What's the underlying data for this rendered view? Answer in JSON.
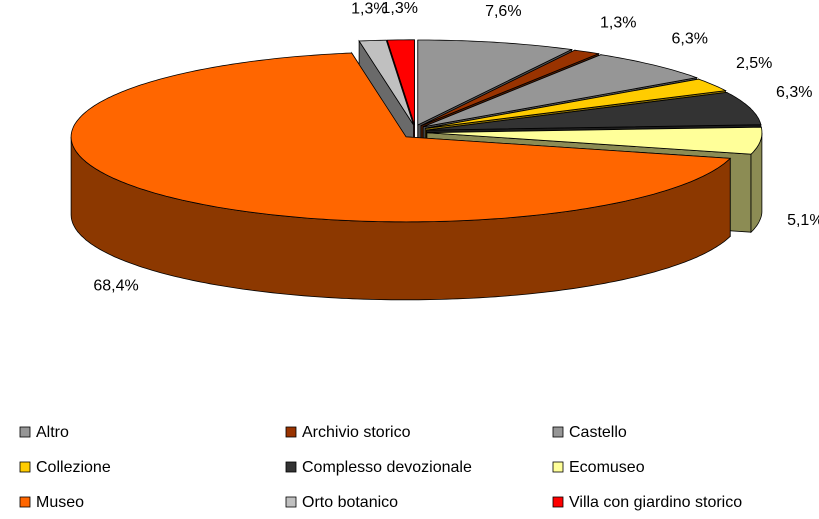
{
  "chart_data": {
    "type": "pie",
    "categories": [
      "Altro",
      "Archivio storico",
      "Castello",
      "Collezione",
      "Complesso devozionale",
      "Ecomuseo",
      "Museo",
      "Orto botanico",
      "Villa con giardino storico"
    ],
    "values": [
      7.6,
      1.3,
      6.3,
      2.5,
      6.3,
      5.1,
      68.4,
      1.3,
      1.3
    ],
    "value_labels": [
      "7,6%",
      "1,3%",
      "6,3%",
      "2,5%",
      "6,3%",
      "5,1%",
      "68,4%",
      "1,3%",
      "1,3%"
    ],
    "colors": [
      "#969696",
      "#993300",
      "#969696",
      "#ffcc00",
      "#333333",
      "#ffff99",
      "#ff6600",
      "#c0c0c0",
      "#ff0000"
    ],
    "legend": "bottom"
  }
}
